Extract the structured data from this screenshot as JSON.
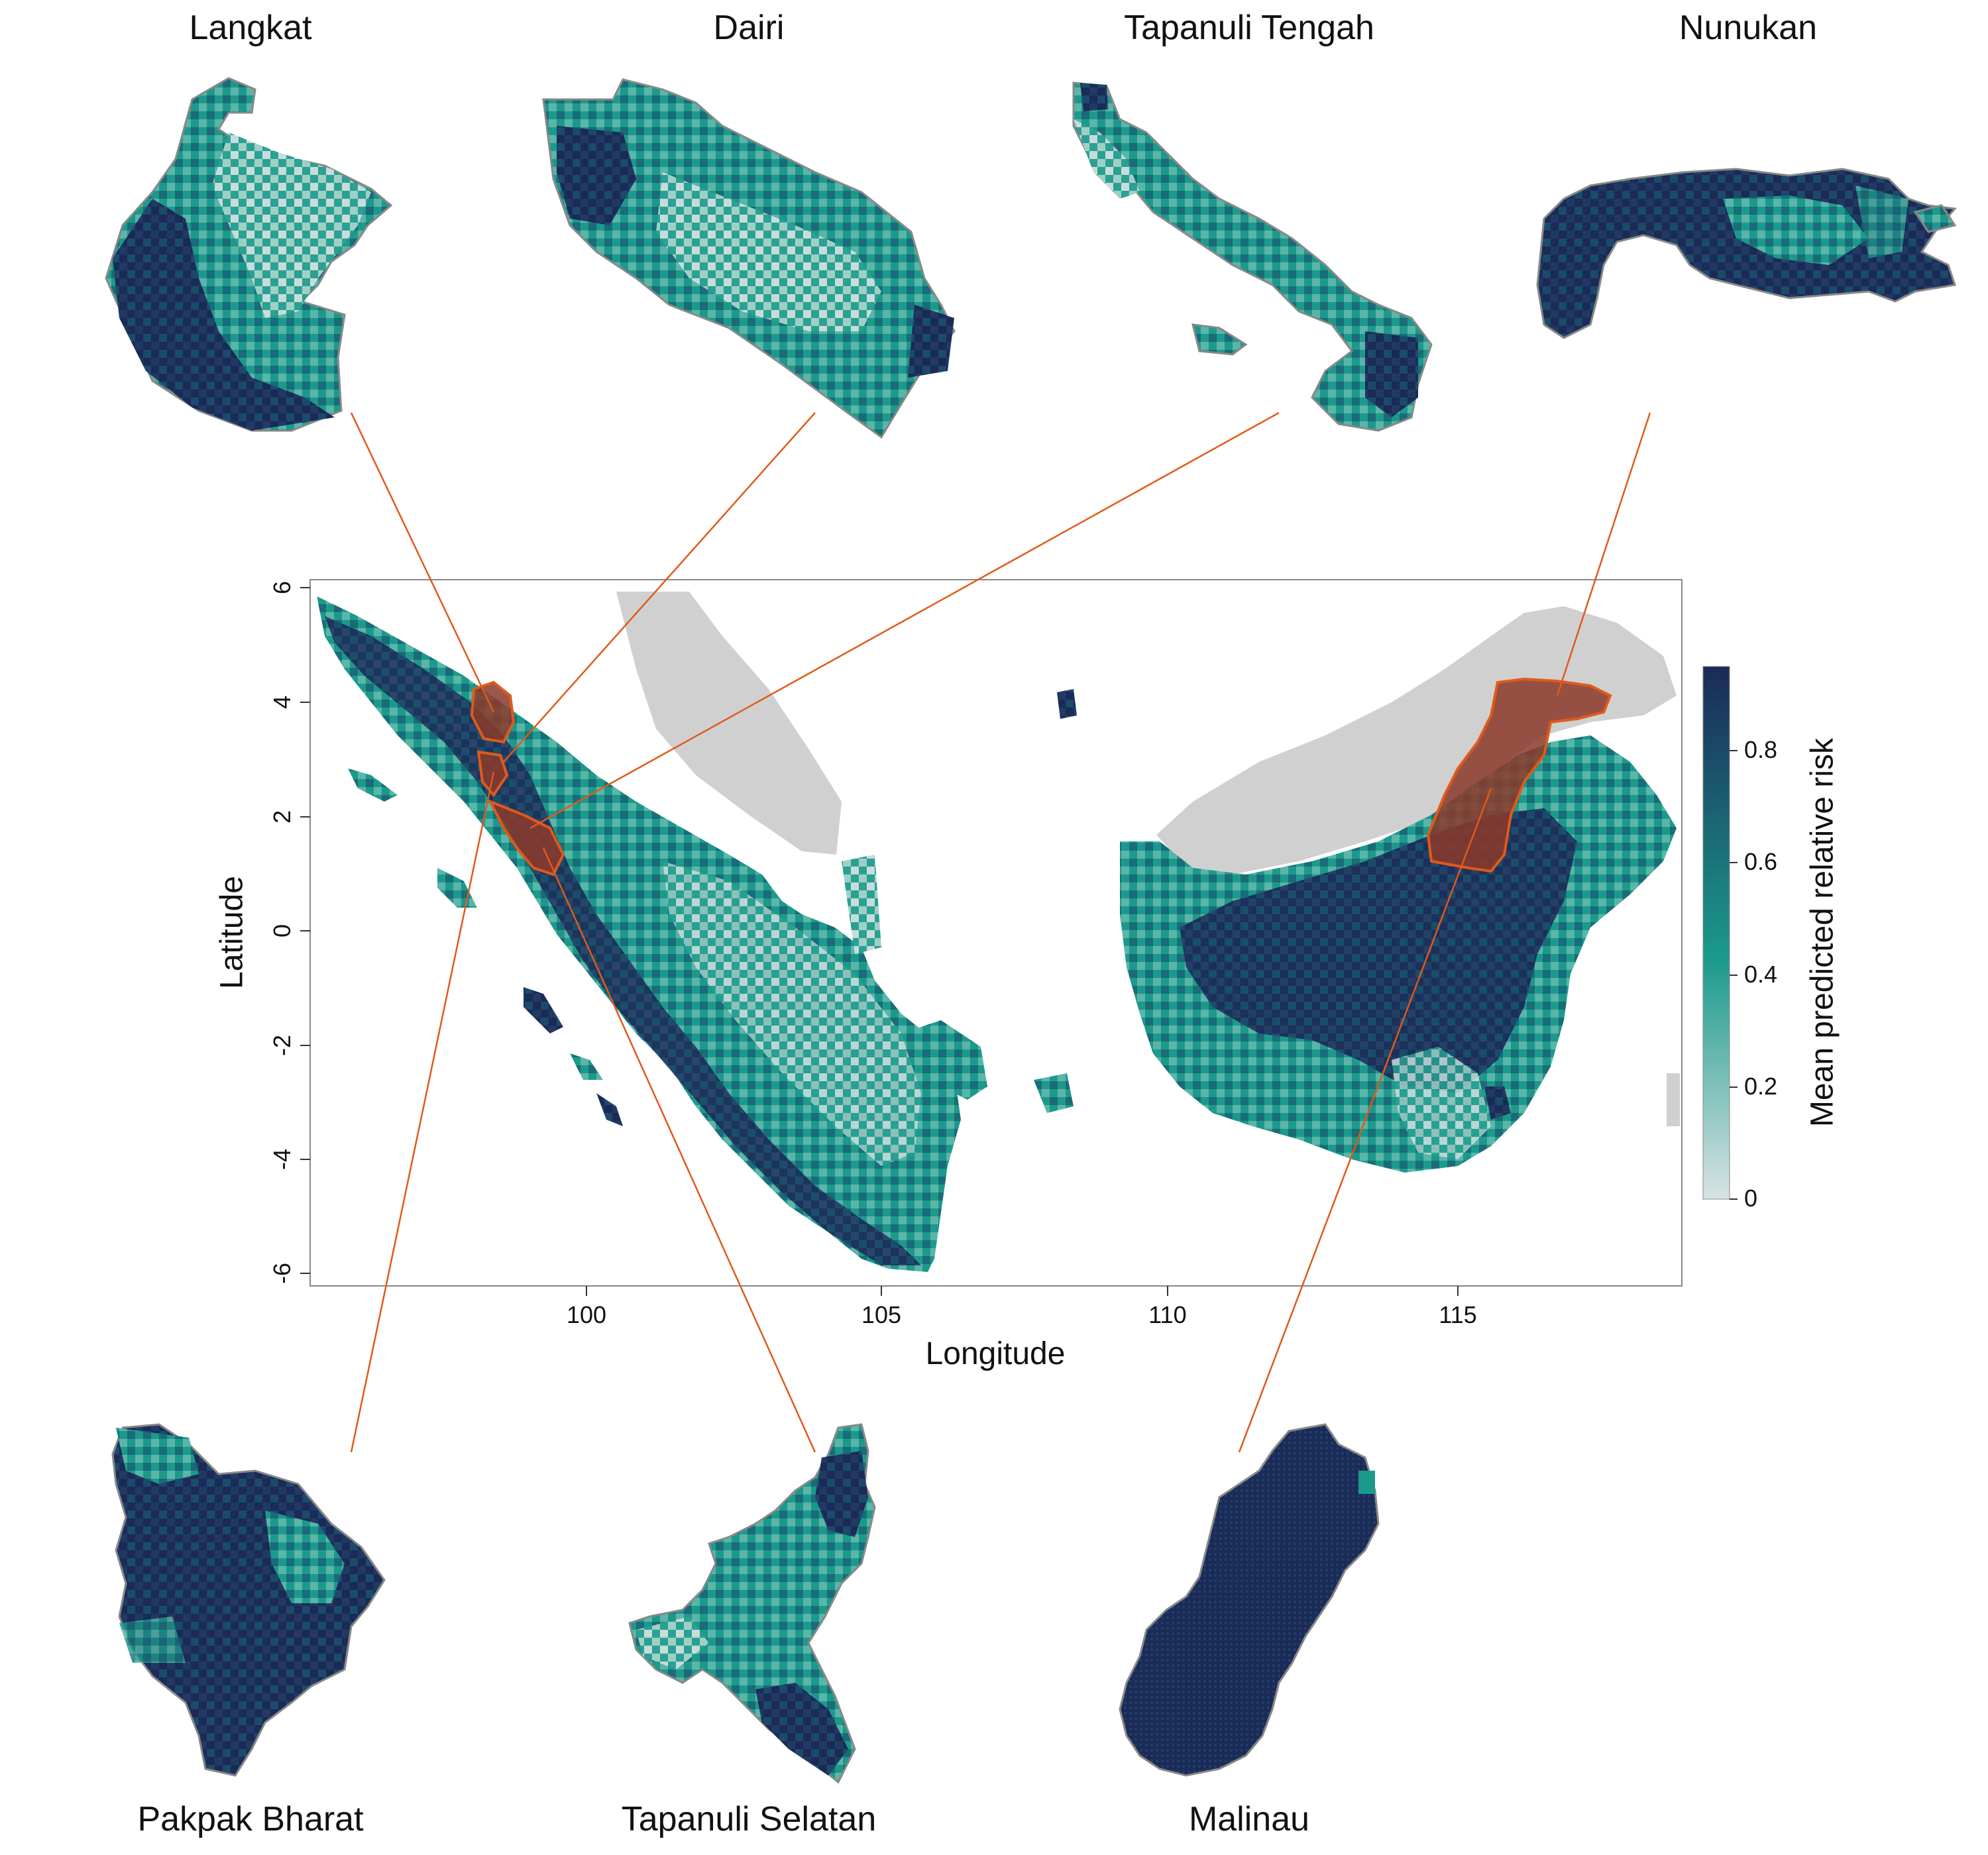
{
  "map": {
    "xlabel": "Longitude",
    "ylabel": "Latitude",
    "x_ticks": [
      "100",
      "105",
      "110",
      "115"
    ],
    "y_ticks": [
      "6",
      "4",
      "2",
      "0",
      "-2",
      "-4",
      "-6"
    ],
    "colorbar": {
      "title": "Mean predicted relative risk",
      "ticks": [
        "0",
        "0.2",
        "0.4",
        "0.6",
        "0.8"
      ]
    }
  },
  "panels": {
    "langkat": "Langkat",
    "dairi": "Dairi",
    "tapanuli_tengah": "Tapanuli Tengah",
    "nunukan": "Nunukan",
    "pakpak_bharat": "Pakpak Bharat",
    "tapanuli_selatan": "Tapanuli Selatan",
    "malinau": "Malinau"
  },
  "colors": {
    "risk_low": "#d8e3e3",
    "risk_mid": "#1b9a8c",
    "risk_high": "#1b2a57",
    "masked_land": "#d0d0d0",
    "highlight": "#e05a1a",
    "highlight_fill": "#8c3a2a",
    "outline": "#888888"
  }
}
